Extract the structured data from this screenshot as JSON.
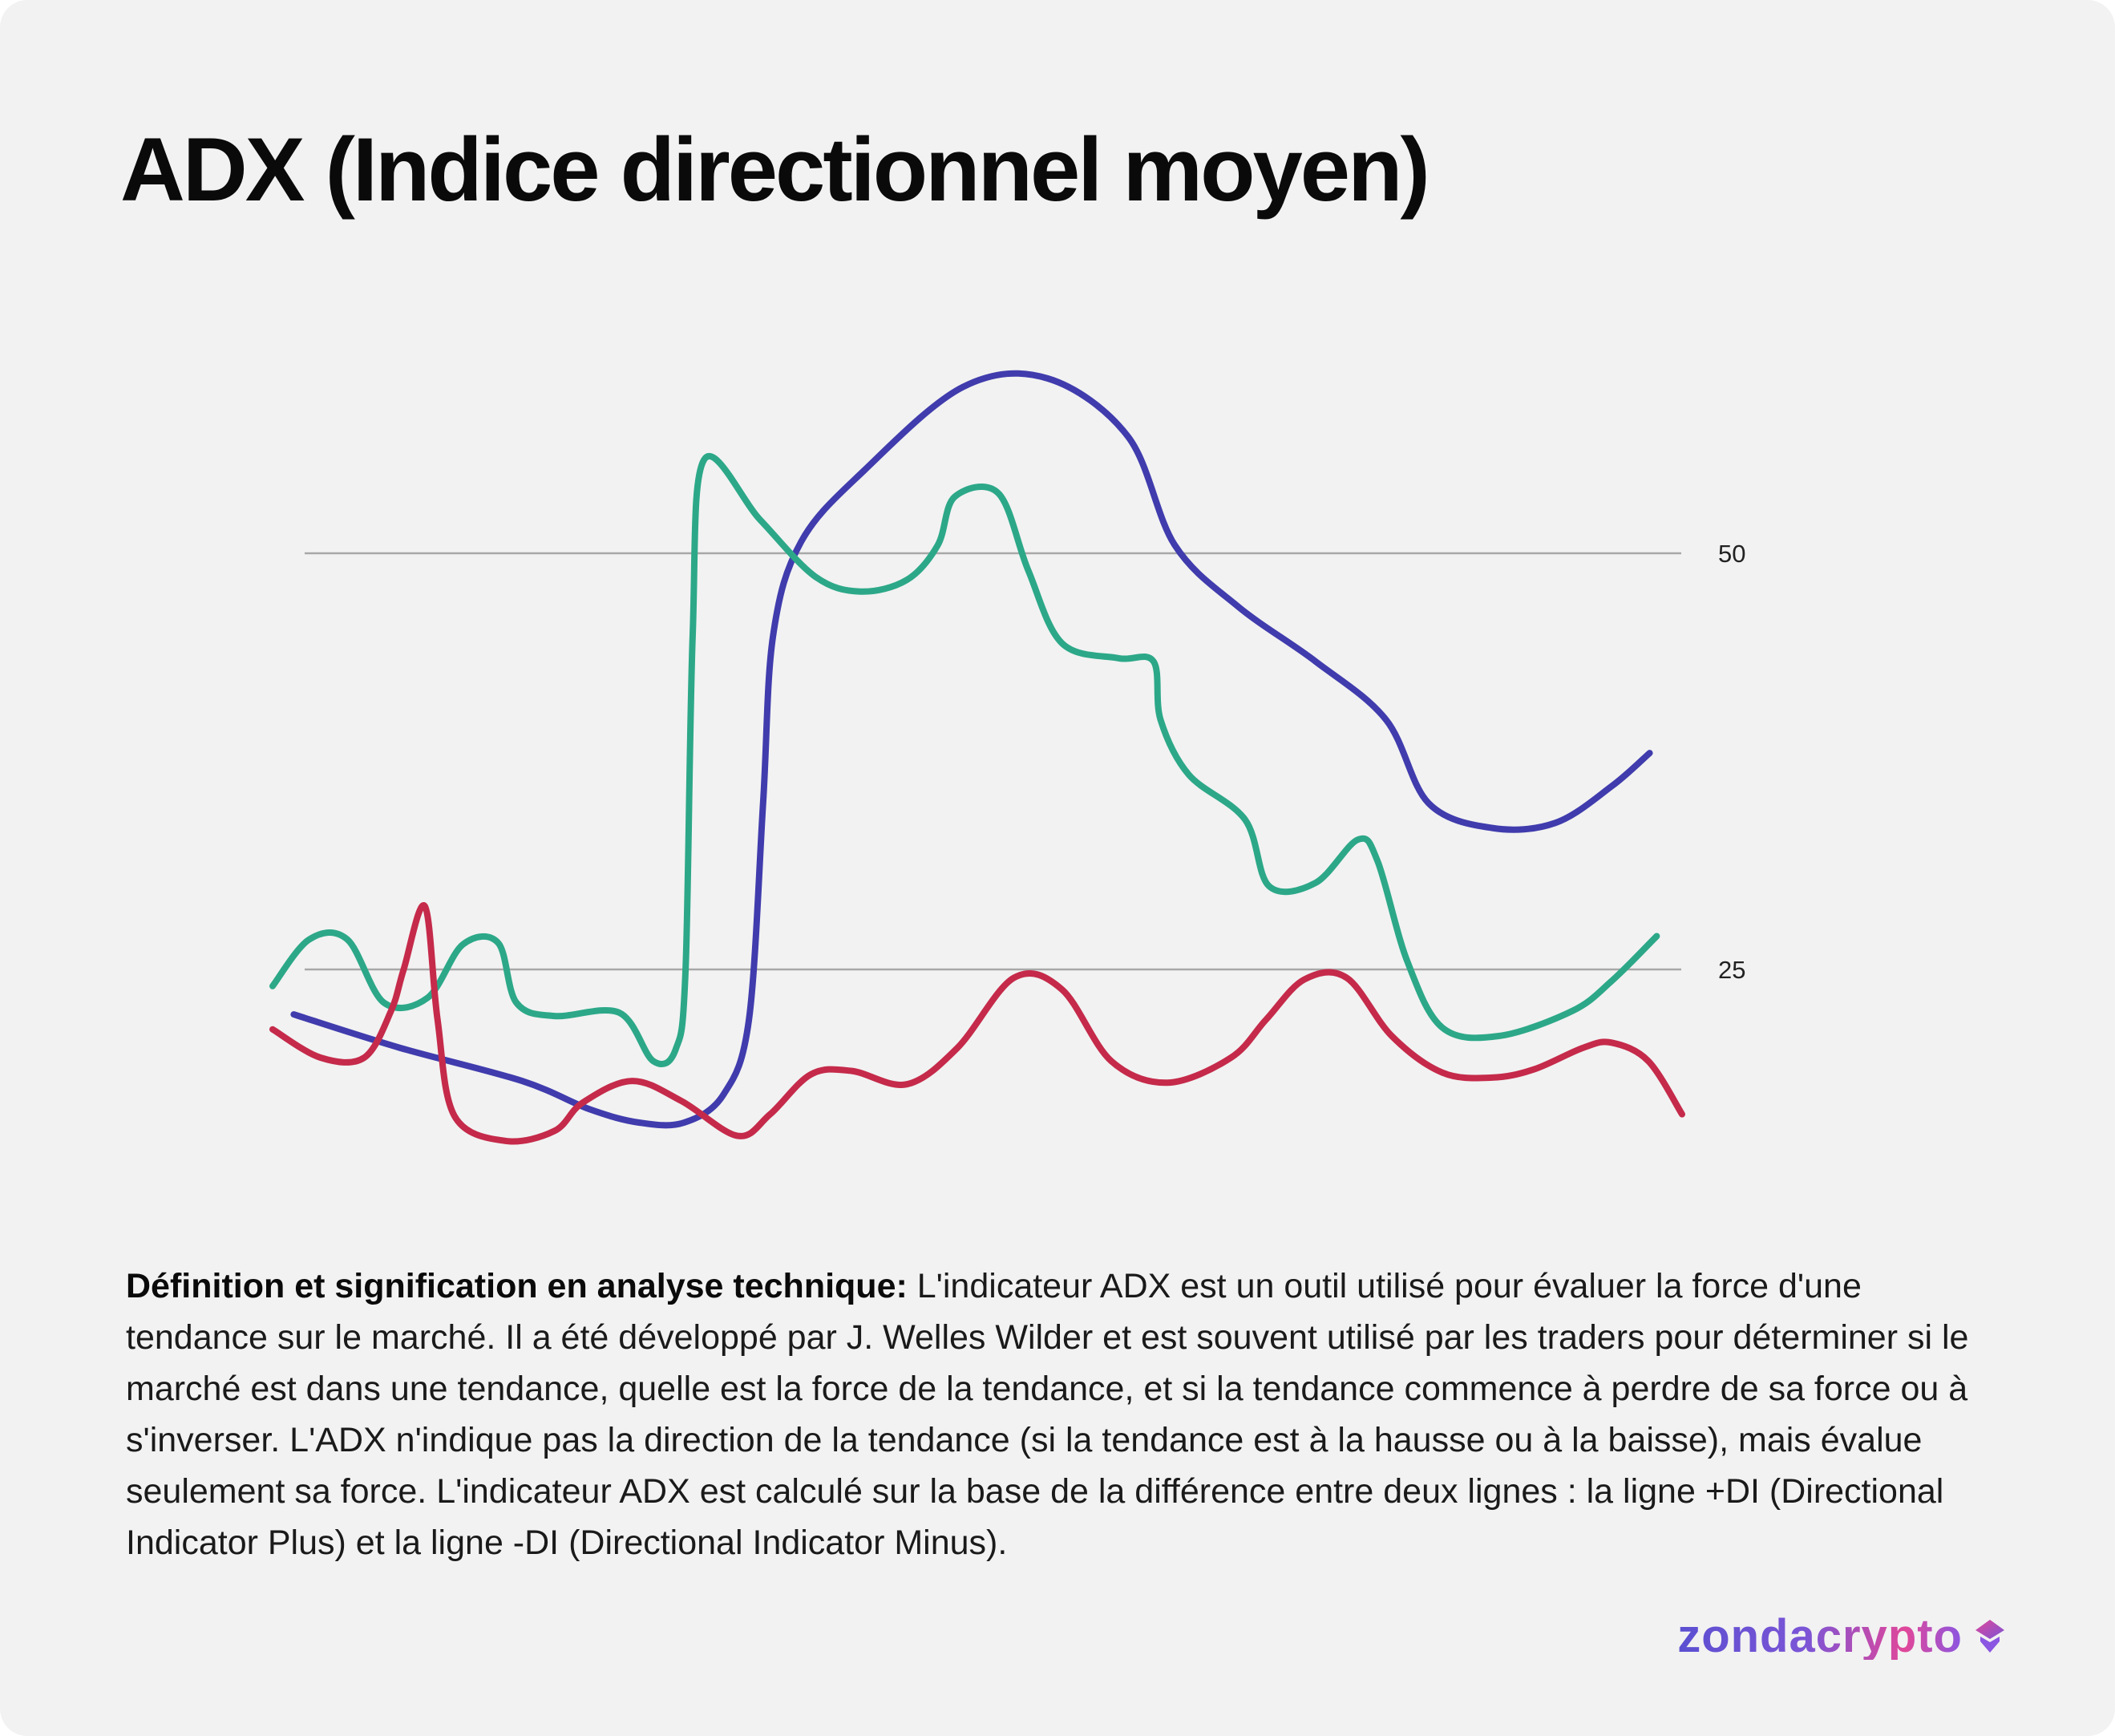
{
  "title": "ADX (Indice directionnel moyen)",
  "description": {
    "bold_label": "Définition et signification en analyse technique:",
    "text": " L'indicateur ADX est un outil utilisé pour évaluer la force d'une tendance sur le marché. Il a été développé par J. Welles Wilder et est souvent utilisé par les traders pour déterminer si le marché est dans une tendance, quelle est la force de la tendance, et si la tendance commence à perdre de sa force ou à s'inverser. L'ADX n'indique pas la direction de la tendance (si la tendance est à la hausse ou à la baisse), mais évalue seulement sa force. L'indicateur ADX est calculé sur la base de la différence entre deux lignes : la ligne +DI (Directional Indicator Plus) et la ligne -DI (Directional Indicator Minus)."
  },
  "brand": {
    "name": "zondacrypto",
    "icon": "zonda-logo-icon"
  },
  "chart_data": {
    "type": "line",
    "title": "",
    "xlabel": "",
    "ylabel": "",
    "x_range": [
      0,
      100
    ],
    "ylim": [
      3,
      64
    ],
    "reference_lines": [
      {
        "y": 50,
        "label": "50"
      },
      {
        "y": 25,
        "label": "25"
      }
    ],
    "grid": false,
    "legend": "none",
    "series": [
      {
        "color": "#403cad",
        "points": [
          [
            1.5,
            22.3
          ],
          [
            9,
            20.3
          ],
          [
            17.7,
            18.3
          ],
          [
            22.5,
            16.6
          ],
          [
            26,
            15.8
          ],
          [
            29.2,
            15.8
          ],
          [
            32,
            17.5
          ],
          [
            33.8,
            22
          ],
          [
            34.8,
            35
          ],
          [
            35.5,
            45
          ],
          [
            37.5,
            50.7
          ],
          [
            42,
            55
          ],
          [
            49,
            60
          ],
          [
            55,
            60.5
          ],
          [
            60.7,
            57
          ],
          [
            64,
            50.5
          ],
          [
            68.5,
            46.8
          ],
          [
            74,
            43.5
          ],
          [
            79,
            40
          ],
          [
            82,
            35
          ],
          [
            86.5,
            33.5
          ],
          [
            91,
            33.8
          ],
          [
            95,
            36
          ],
          [
            97.7,
            38
          ]
        ]
      },
      {
        "color": "#2ca888",
        "points": [
          [
            0,
            24
          ],
          [
            2.6,
            26.8
          ],
          [
            5.3,
            26.8
          ],
          [
            7.9,
            23
          ],
          [
            11,
            23.3
          ],
          [
            13.5,
            26.5
          ],
          [
            16,
            26.6
          ],
          [
            17.3,
            23
          ],
          [
            20,
            22.2
          ],
          [
            24.6,
            22.4
          ],
          [
            27,
            19.5
          ],
          [
            28.6,
            20.2
          ],
          [
            29.3,
            25
          ],
          [
            29.8,
            45
          ],
          [
            30.6,
            55.6
          ],
          [
            34.6,
            52
          ],
          [
            38.5,
            48.6
          ],
          [
            41.7,
            47.7
          ],
          [
            45,
            48.4
          ],
          [
            47.2,
            50.5
          ],
          [
            48.4,
            53.4
          ],
          [
            51.5,
            53.6
          ],
          [
            53.6,
            49
          ],
          [
            56,
            44.6
          ],
          [
            60,
            43.7
          ],
          [
            62.5,
            43.5
          ],
          [
            63,
            40
          ],
          [
            65,
            36.7
          ],
          [
            69,
            34
          ],
          [
            70.7,
            30
          ],
          [
            74,
            30.2
          ],
          [
            77,
            32.8
          ],
          [
            78.4,
            31.5
          ],
          [
            80.5,
            25.5
          ],
          [
            83,
            21.5
          ],
          [
            87,
            21
          ],
          [
            92.2,
            22.5
          ],
          [
            95,
            24.3
          ],
          [
            98.2,
            27
          ]
        ]
      },
      {
        "color": "#c52a4a",
        "points": [
          [
            0,
            21.4
          ],
          [
            3.4,
            19.7
          ],
          [
            6.5,
            19.7
          ],
          [
            8.4,
            22.5
          ],
          [
            9.3,
            25
          ],
          [
            10.8,
            28.8
          ],
          [
            11.7,
            22
          ],
          [
            12.9,
            16.2
          ],
          [
            16.5,
            14.7
          ],
          [
            20,
            15.3
          ],
          [
            22,
            17
          ],
          [
            25.5,
            18.3
          ],
          [
            29,
            17.1
          ],
          [
            33,
            15
          ],
          [
            35.3,
            16.3
          ],
          [
            38.2,
            18.7
          ],
          [
            41.1,
            18.9
          ],
          [
            45,
            18.1
          ],
          [
            48.6,
            20.3
          ],
          [
            52.6,
            24.5
          ],
          [
            56,
            23.8
          ],
          [
            59.5,
            19.5
          ],
          [
            63.5,
            18.2
          ],
          [
            68,
            19.7
          ],
          [
            70.5,
            22
          ],
          [
            73.2,
            24.4
          ],
          [
            76.2,
            24.5
          ],
          [
            79.4,
            21
          ],
          [
            83,
            18.8
          ],
          [
            86.5,
            18.5
          ],
          [
            89.5,
            19
          ],
          [
            93,
            20.3
          ],
          [
            95,
            20.6
          ],
          [
            97.6,
            19.5
          ],
          [
            100,
            16.3
          ]
        ]
      }
    ]
  },
  "colors": {
    "card_background": "#f2f2f2",
    "reference_line": "#a8a8a8",
    "title_text": "#0a0a0a"
  }
}
